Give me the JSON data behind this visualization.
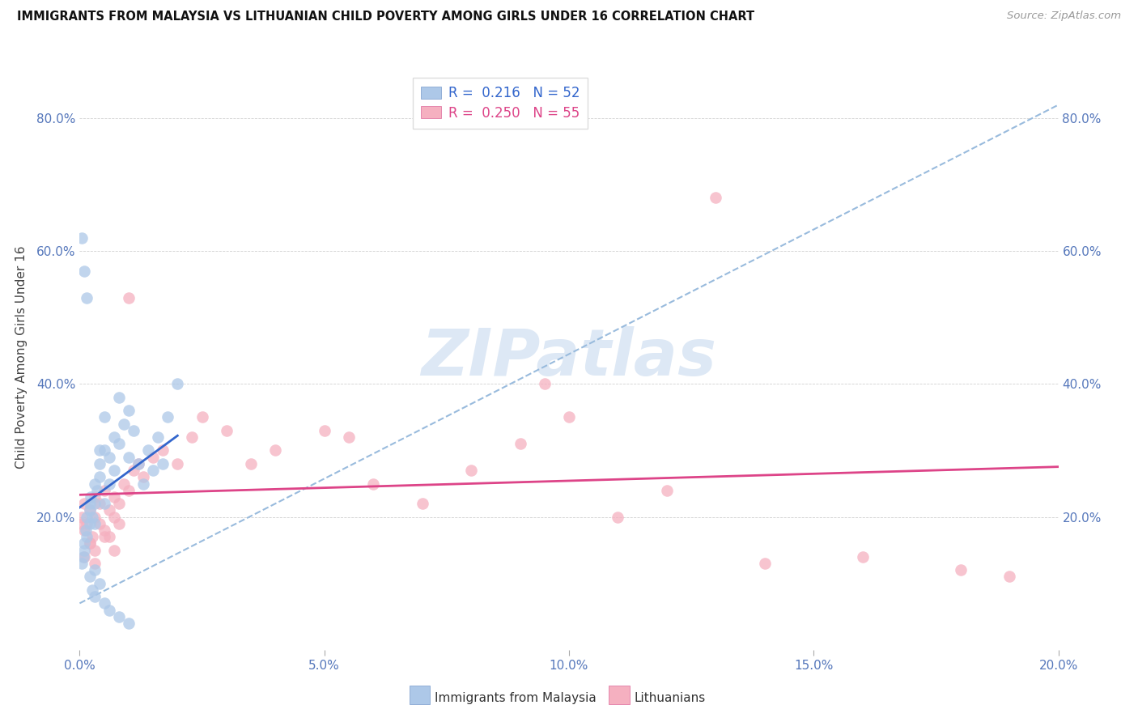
{
  "title": "IMMIGRANTS FROM MALAYSIA VS LITHUANIAN CHILD POVERTY AMONG GIRLS UNDER 16 CORRELATION CHART",
  "source": "Source: ZipAtlas.com",
  "ylabel": "Child Poverty Among Girls Under 16",
  "legend_label_1": "Immigrants from Malaysia",
  "legend_label_2": "Lithuanians",
  "R1": 0.216,
  "N1": 52,
  "R2": 0.25,
  "N2": 55,
  "color1": "#adc8e8",
  "color2": "#f5b0c0",
  "line1_color": "#3366cc",
  "line2_color": "#dd4488",
  "dashed_line_color": "#99bbdd",
  "xlim": [
    0.0,
    0.2
  ],
  "ylim": [
    0.0,
    0.88
  ],
  "xticks": [
    0.0,
    0.05,
    0.1,
    0.15,
    0.2
  ],
  "yticks": [
    0.0,
    0.2,
    0.4,
    0.6,
    0.8
  ],
  "xticklabels": [
    "0.0%",
    "5.0%",
    "10.0%",
    "15.0%",
    "20.0%"
  ],
  "yticklabels": [
    "",
    "20.0%",
    "40.0%",
    "60.0%",
    "80.0%"
  ],
  "malaysia_x": [
    0.0005,
    0.0008,
    0.001,
    0.001,
    0.0012,
    0.0015,
    0.0015,
    0.002,
    0.002,
    0.002,
    0.0022,
    0.0025,
    0.003,
    0.003,
    0.003,
    0.0035,
    0.004,
    0.004,
    0.004,
    0.005,
    0.005,
    0.005,
    0.006,
    0.006,
    0.007,
    0.007,
    0.008,
    0.008,
    0.009,
    0.01,
    0.01,
    0.011,
    0.012,
    0.013,
    0.014,
    0.015,
    0.016,
    0.017,
    0.018,
    0.02,
    0.0005,
    0.001,
    0.0015,
    0.002,
    0.0025,
    0.003,
    0.003,
    0.004,
    0.005,
    0.006,
    0.008,
    0.01
  ],
  "malaysia_y": [
    0.13,
    0.14,
    0.16,
    0.15,
    0.18,
    0.2,
    0.17,
    0.19,
    0.22,
    0.21,
    0.23,
    0.2,
    0.22,
    0.25,
    0.19,
    0.24,
    0.28,
    0.3,
    0.26,
    0.22,
    0.3,
    0.35,
    0.25,
    0.29,
    0.32,
    0.27,
    0.31,
    0.38,
    0.34,
    0.29,
    0.36,
    0.33,
    0.28,
    0.25,
    0.3,
    0.27,
    0.32,
    0.28,
    0.35,
    0.4,
    0.62,
    0.57,
    0.53,
    0.11,
    0.09,
    0.08,
    0.12,
    0.1,
    0.07,
    0.06,
    0.05,
    0.04
  ],
  "lithuanian_x": [
    0.0005,
    0.001,
    0.001,
    0.0015,
    0.002,
    0.002,
    0.0025,
    0.003,
    0.003,
    0.003,
    0.004,
    0.004,
    0.005,
    0.005,
    0.006,
    0.006,
    0.007,
    0.007,
    0.008,
    0.008,
    0.009,
    0.01,
    0.011,
    0.012,
    0.013,
    0.015,
    0.017,
    0.02,
    0.023,
    0.025,
    0.03,
    0.035,
    0.04,
    0.05,
    0.055,
    0.06,
    0.07,
    0.08,
    0.09,
    0.095,
    0.1,
    0.11,
    0.12,
    0.13,
    0.14,
    0.16,
    0.18,
    0.19,
    0.0005,
    0.001,
    0.002,
    0.003,
    0.005,
    0.007,
    0.01
  ],
  "lithuanian_y": [
    0.2,
    0.18,
    0.22,
    0.19,
    0.16,
    0.21,
    0.17,
    0.2,
    0.23,
    0.15,
    0.19,
    0.22,
    0.18,
    0.24,
    0.21,
    0.17,
    0.23,
    0.2,
    0.19,
    0.22,
    0.25,
    0.24,
    0.27,
    0.28,
    0.26,
    0.29,
    0.3,
    0.28,
    0.32,
    0.35,
    0.33,
    0.28,
    0.3,
    0.33,
    0.32,
    0.25,
    0.22,
    0.27,
    0.31,
    0.4,
    0.35,
    0.2,
    0.24,
    0.68,
    0.13,
    0.14,
    0.12,
    0.11,
    0.19,
    0.14,
    0.16,
    0.13,
    0.17,
    0.15,
    0.53
  ]
}
